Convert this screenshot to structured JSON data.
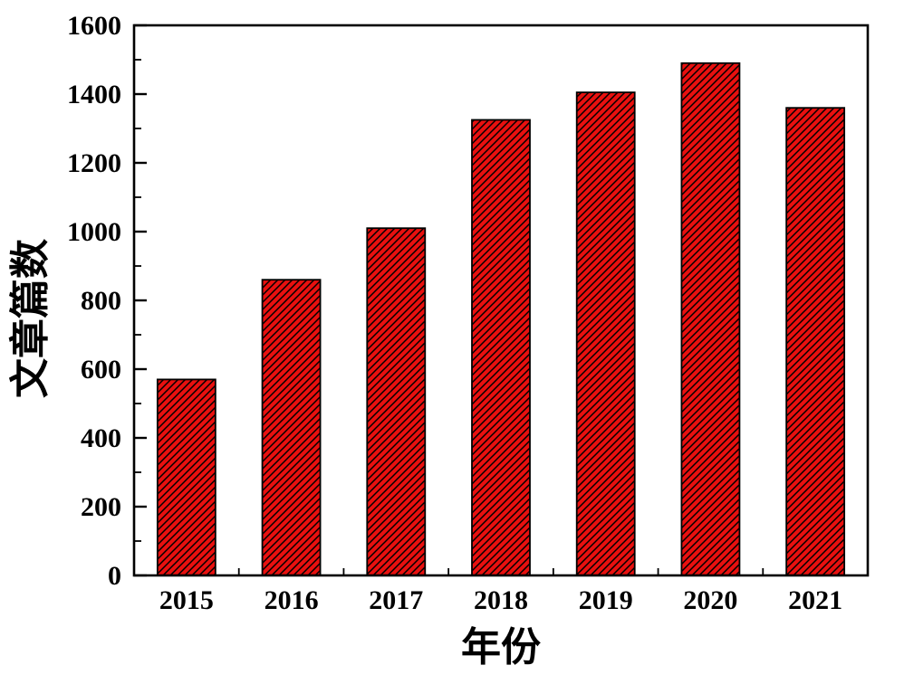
{
  "chart_data": {
    "type": "bar",
    "title": "",
    "categories": [
      "2015",
      "2016",
      "2017",
      "2018",
      "2019",
      "2020",
      "2021"
    ],
    "values": [
      570,
      860,
      1010,
      1325,
      1405,
      1490,
      1360
    ],
    "xlabel": "年份",
    "ylabel": "文章篇数",
    "ylim": [
      0,
      1600
    ],
    "y_major_step": 200,
    "y_minor_step": 100,
    "y_tick_labels": [
      "0",
      "200",
      "400",
      "600",
      "800",
      "1000",
      "1200",
      "1400",
      "1600"
    ],
    "grid": false,
    "legend": null,
    "bar_color": "#e8100f",
    "bar_edge_color": "#000000",
    "hatch": "diagonal-forward",
    "hatch_color": "#000000",
    "frame_color": "#000000",
    "background": "#ffffff"
  }
}
